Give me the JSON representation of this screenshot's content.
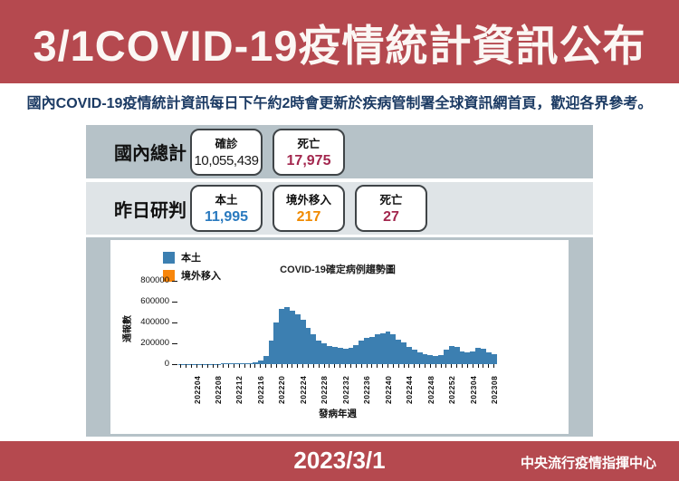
{
  "header": {
    "title": "3/1COVID-19疫情統計資訊公布"
  },
  "subtitle": "國內COVID-19疫情統計資訊每日下午約2時會更新於疾病管制署全球資訊網首頁，歡迎各界參考。",
  "summary": {
    "total": {
      "row_label": "國內總計",
      "boxes": [
        {
          "label": "確診",
          "value": "10,055,439",
          "value_color": "#1a1a1a"
        },
        {
          "label": "死亡",
          "value": "17,975",
          "value_color": "#a3274e"
        }
      ]
    },
    "yesterday": {
      "row_label": "昨日研判",
      "boxes": [
        {
          "label": "本土",
          "value": "11,995",
          "value_color": "#2a7abf"
        },
        {
          "label": "境外移入",
          "value": "217",
          "value_color": "#f08a00"
        },
        {
          "label": "死亡",
          "value": "27",
          "value_color": "#a3274e"
        }
      ]
    }
  },
  "chart_data": {
    "type": "bar",
    "title": "COVID-19確定病例趨勢圖",
    "xlabel": "發病年週",
    "ylabel": "通報數",
    "ylim": [
      0,
      800000
    ],
    "yticks": [
      0,
      200000,
      400000,
      600000,
      800000
    ],
    "grid": false,
    "legend_position": "upper-left",
    "legend": [
      {
        "name": "本土",
        "color": "#3c7fb1"
      },
      {
        "name": "境外移入",
        "color": "#f8860b"
      }
    ],
    "x_tick_labels": [
      "202204",
      "202208",
      "202212",
      "202216",
      "202220",
      "202224",
      "202228",
      "202232",
      "202236",
      "202240",
      "202244",
      "202248",
      "202252",
      "202304",
      "202308"
    ],
    "weeks": [
      "202201",
      "202202",
      "202203",
      "202204",
      "202205",
      "202206",
      "202207",
      "202208",
      "202209",
      "202210",
      "202211",
      "202212",
      "202213",
      "202214",
      "202215",
      "202216",
      "202217",
      "202218",
      "202219",
      "202220",
      "202221",
      "202222",
      "202223",
      "202224",
      "202225",
      "202226",
      "202227",
      "202228",
      "202229",
      "202230",
      "202231",
      "202232",
      "202233",
      "202234",
      "202235",
      "202236",
      "202237",
      "202238",
      "202239",
      "202240",
      "202241",
      "202242",
      "202243",
      "202244",
      "202245",
      "202246",
      "202247",
      "202248",
      "202249",
      "202250",
      "202251",
      "202252",
      "202301",
      "202302",
      "202303",
      "202304",
      "202305",
      "202306",
      "202307",
      "202308"
    ],
    "series": [
      {
        "name": "本土",
        "color": "#3c7fb1",
        "values": [
          2000,
          2000,
          2000,
          3000,
          3000,
          3000,
          4000,
          4000,
          5000,
          5000,
          6000,
          7000,
          8000,
          10000,
          18000,
          35000,
          80000,
          230000,
          400000,
          530000,
          545000,
          515000,
          480000,
          430000,
          350000,
          285000,
          230000,
          198000,
          178000,
          163000,
          155000,
          152000,
          158000,
          185000,
          222000,
          255000,
          265000,
          285000,
          300000,
          310000,
          288000,
          232000,
          208000,
          165000,
          135000,
          110000,
          96000,
          87000,
          81000,
          86000,
          140000,
          172000,
          168000,
          124000,
          114000,
          123000,
          158000,
          150000,
          113000,
          95000
        ]
      },
      {
        "name": "境外移入",
        "color": "#f8860b",
        "values": [
          0,
          0,
          0,
          0,
          0,
          0,
          0,
          0,
          0,
          0,
          0,
          0,
          0,
          0,
          0,
          0,
          0,
          0,
          0,
          0,
          0,
          0,
          0,
          0,
          0,
          0,
          0,
          0,
          0,
          0,
          0,
          0,
          0,
          0,
          0,
          0,
          0,
          0,
          0,
          0,
          0,
          0,
          0,
          0,
          0,
          0,
          0,
          0,
          0,
          0,
          0,
          0,
          0,
          0,
          0,
          0,
          0,
          0,
          0,
          0
        ]
      }
    ]
  },
  "footer": {
    "date": "2023/3/1",
    "agency": "中央流行疫情指揮中心"
  },
  "colors": {
    "band_red": "#b5494f",
    "subtitle_navy": "#1b3a63",
    "panel_gray": "#b6c2c8",
    "panel_light_gray": "#dfe4e7",
    "box_border": "#3f4447",
    "bar_blue": "#3c7fb1",
    "legend_orange": "#f8860b",
    "death_crimson": "#a3274e",
    "local_blue": "#2a7abf",
    "imported_orange": "#f08a00"
  }
}
